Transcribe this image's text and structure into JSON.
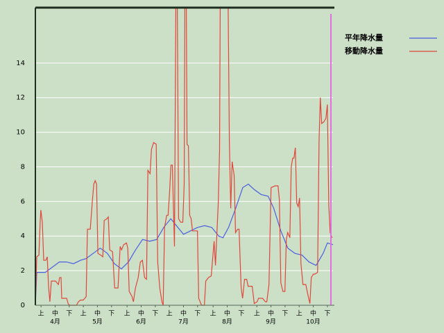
{
  "chart_data": {
    "type": "line",
    "legend": "top-right",
    "grid": true,
    "xlim": [
      0,
      211
    ],
    "ylim": [
      0,
      17.2
    ],
    "yticks": [
      0,
      2,
      4,
      6,
      8,
      10,
      12,
      14
    ],
    "xticks": [
      {
        "value": 4,
        "label": "上"
      },
      {
        "value": 14,
        "label": "中"
      },
      {
        "value": 24,
        "label": "下"
      },
      {
        "value": 34,
        "label": "上"
      },
      {
        "value": 44,
        "label": "中"
      },
      {
        "value": 54,
        "label": "下"
      },
      {
        "value": 65,
        "label": "上"
      },
      {
        "value": 75,
        "label": "中"
      },
      {
        "value": 85,
        "label": "下"
      },
      {
        "value": 95,
        "label": "上"
      },
      {
        "value": 105,
        "label": "中"
      },
      {
        "value": 115,
        "label": "下"
      },
      {
        "value": 126,
        "label": "上"
      },
      {
        "value": 136,
        "label": "中"
      },
      {
        "value": 146,
        "label": "下"
      },
      {
        "value": 157,
        "label": "上"
      },
      {
        "value": 167,
        "label": "中"
      },
      {
        "value": 177,
        "label": "下"
      },
      {
        "value": 187,
        "label": "上"
      },
      {
        "value": 197,
        "label": "中"
      },
      {
        "value": 207,
        "label": "下"
      }
    ],
    "month_labels": [
      {
        "value": 14,
        "label": "4月"
      },
      {
        "value": 44,
        "label": "5月"
      },
      {
        "value": 75,
        "label": "6月"
      },
      {
        "value": 105,
        "label": "7月"
      },
      {
        "value": 136,
        "label": "8月"
      },
      {
        "value": 167,
        "label": "9月"
      },
      {
        "value": 197,
        "label": "10月"
      }
    ],
    "series": [
      {
        "name": "平年降水量",
        "color": "#4a5ee0",
        "x": [
          0,
          1,
          7,
          12,
          17,
          22,
          27,
          32,
          36,
          41,
          46,
          51,
          56,
          61,
          66,
          71,
          76,
          81,
          86,
          91,
          96,
          100,
          105,
          110,
          115,
          120,
          125,
          130,
          133,
          137,
          142,
          147,
          151,
          155,
          160,
          165,
          169,
          174,
          179,
          184,
          189,
          194,
          199,
          204,
          207,
          211
        ],
        "values": [
          0,
          1.9,
          1.9,
          2.2,
          2.5,
          2.5,
          2.4,
          2.6,
          2.7,
          3.0,
          3.3,
          3.0,
          2.4,
          2.1,
          2.5,
          3.2,
          3.8,
          3.7,
          3.8,
          4.5,
          5.0,
          4.6,
          4.1,
          4.3,
          4.5,
          4.6,
          4.5,
          4.0,
          3.9,
          4.5,
          5.6,
          6.8,
          7.0,
          6.7,
          6.4,
          6.3,
          5.6,
          4.3,
          3.3,
          3.0,
          2.9,
          2.5,
          2.3,
          3.0,
          3.6,
          3.5
        ]
      },
      {
        "name": "移動降水量",
        "color": "#e0463a",
        "x": [
          0,
          1.0,
          2.5,
          3.4,
          3.9,
          4.9,
          5.9,
          7.4,
          8.4,
          9.4,
          10.3,
          11.3,
          14.3,
          16.3,
          17.2,
          18.2,
          18.7,
          22.2,
          23.2,
          24.1,
          29.1,
          30.5,
          32.0,
          34.0,
          36.0,
          36.9,
          38.9,
          40.4,
          41.4,
          42.4,
          43.4,
          44.3,
          46.3,
          47.8,
          48.8,
          50.7,
          51.7,
          52.7,
          54.7,
          56.2,
          58.6,
          60.1,
          61.1,
          62.6,
          64.6,
          65.5,
          66.5,
          68.5,
          69.5,
          70.9,
          72.9,
          74.4,
          75.9,
          77.4,
          78.8,
          79.8,
          81.3,
          82.3,
          83.8,
          85.7,
          86.7,
          88.2,
          89.7,
          90.6,
          91.6,
          93.1,
          94.1,
          95.1,
          96.1,
          97.1,
          98.6,
          99.6,
          100.6,
          101.5,
          103.0,
          104.5,
          105.5,
          106.0,
          107.0,
          107.5,
          108.5,
          109.4,
          110.4,
          111.4,
          114.9,
          115.8,
          117.8,
          119.8,
          120.8,
          122.7,
          124.7,
          126.7,
          127.7,
          129.7,
          130.6,
          131.1,
          136.6,
          137.5,
          138.5,
          139.5,
          140.9,
          141.9,
          143.4,
          144.4,
          145.9,
          146.9,
          148.3,
          149.8,
          150.8,
          153.7,
          155.2,
          157.2,
          158.2,
          161.1,
          163.1,
          164.1,
          165.6,
          167.1,
          170.0,
          172.0,
          173.0,
          174.0,
          175.5,
          176.9,
          177.9,
          178.9,
          180.4,
          181.4,
          182.4,
          183.3,
          184.3,
          185.3,
          186.3,
          187.3,
          188.3,
          189.7,
          191.7,
          193.2,
          194.6,
          195.6,
          197.1,
          198.1,
          200.1,
          201.1,
          202.0,
          203.0,
          204.5,
          206.0,
          207.0,
          208.0,
          209.0,
          210.4
        ],
        "values": [
          0,
          2.8,
          2.9,
          4.8,
          5.5,
          4.8,
          2.6,
          2.6,
          2.8,
          1.0,
          0.2,
          1.4,
          1.4,
          1.2,
          1.6,
          1.6,
          0.4,
          0.4,
          0.1,
          0,
          0,
          0.2,
          0.3,
          0.3,
          0.5,
          4.4,
          4.4,
          6.0,
          7.0,
          7.2,
          7.0,
          3.0,
          2.9,
          2.8,
          4.9,
          5.0,
          5.1,
          3.2,
          3.1,
          1.0,
          1.0,
          3.4,
          3.2,
          3.5,
          3.6,
          3.3,
          0.8,
          0.5,
          0.2,
          1.0,
          1.6,
          2.5,
          2.6,
          1.6,
          1.5,
          7.8,
          7.6,
          9.0,
          9.4,
          9.3,
          2.5,
          1.0,
          0.2,
          0,
          4.5,
          5.2,
          5.2,
          6.5,
          8.1,
          8.1,
          3.4,
          18,
          18,
          5.0,
          4.8,
          4.8,
          7.0,
          18,
          18,
          9.3,
          9.2,
          5.2,
          5.0,
          4.3,
          4.3,
          0.4,
          0,
          0,
          1.4,
          1.6,
          1.7,
          3.7,
          2.3,
          6.0,
          9.0,
          18,
          18,
          9.5,
          5.6,
          8.3,
          7.5,
          4.2,
          4.4,
          4.4,
          1.0,
          0.4,
          1.5,
          1.5,
          1.1,
          1.1,
          0.1,
          0.2,
          0.4,
          0.4,
          0.2,
          0.2,
          1.2,
          6.8,
          6.9,
          6.9,
          6.1,
          1.3,
          0.8,
          0.8,
          3.8,
          4.2,
          3.9,
          8.0,
          8.5,
          8.5,
          9.1,
          5.9,
          5.7,
          6.2,
          2.4,
          1.2,
          1.2,
          0.6,
          0.1,
          1.6,
          1.8,
          1.8,
          1.9,
          9.5,
          12.0,
          10.5,
          10.6,
          10.8,
          11.6,
          5.8,
          4.2,
          3.9
        ]
      }
    ]
  }
}
